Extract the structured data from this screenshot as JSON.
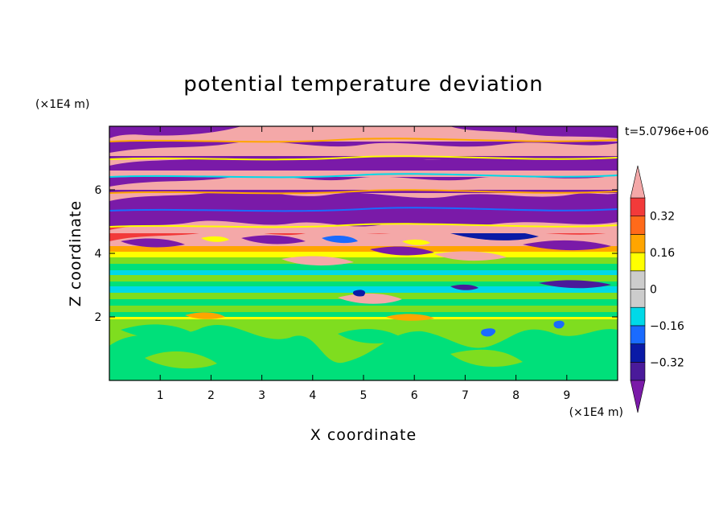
{
  "chart_data": {
    "type": "heatmap",
    "title": "potential temperature deviation",
    "xlabel": "X coordinate",
    "ylabel": "Z coordinate",
    "x_unit": "(×1E4 m)",
    "y_unit": "(×1E4 m)",
    "time_label": "t=5.0796e+06",
    "xlim": [
      0,
      10
    ],
    "ylim": [
      0,
      8
    ],
    "x_ticks": [
      1,
      2,
      3,
      4,
      5,
      6,
      7,
      8,
      9
    ],
    "y_ticks": [
      2,
      4,
      6
    ],
    "colorbar": {
      "levels": [
        -0.4,
        -0.32,
        -0.24,
        -0.16,
        -0.08,
        0,
        0.08,
        0.16,
        0.24,
        0.32,
        0.4
      ],
      "labels": [
        "0.32",
        "0.16",
        "0",
        "−0.16",
        "−0.32"
      ],
      "label_values": [
        0.32,
        0.16,
        0,
        -0.16,
        -0.32
      ],
      "extend": "both",
      "colors": {
        "over": "#f4a8a8",
        "0.32..0.40": "#f23a3a",
        "0.24..0.32": "#ff6a1a",
        "0.16..0.24": "#ffa500",
        "0.08..0.16": "#ffff00",
        "0..0.08": "#7fdd1f",
        "-0.08..0": "#00e07a",
        "-0.16..-0.08": "#00d9e8",
        "-0.24..-0.16": "#1a6bff",
        "-0.32..-0.24": "#0a1aa6",
        "-0.40..-0.32": "#4a1a9a",
        "under": "#7a1aa8"
      }
    }
  }
}
